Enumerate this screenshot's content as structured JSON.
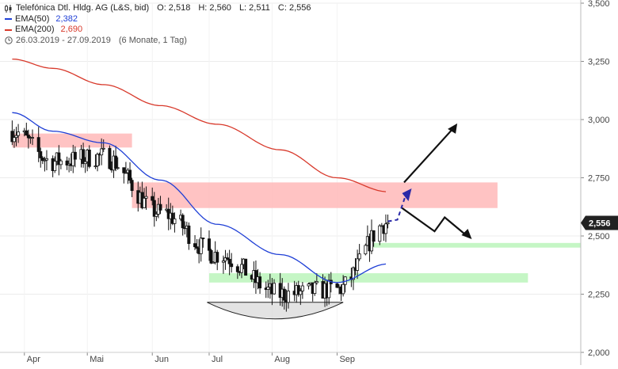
{
  "header": {
    "instrument": "Telefónica Dtl. Hldg. AG (L&S, bid)",
    "ohlc": {
      "open": "O: 2,518",
      "high": "H: 2,560",
      "low": "L: 2,511",
      "close": "C: 2,556"
    },
    "ema50": {
      "label": "EMA(50)",
      "value": "2,382"
    },
    "ema200": {
      "label": "EMA(200)",
      "value": "2,690"
    },
    "range": "26.03.2019 - 27.09.2019",
    "period": "(6 Monate, 1 Tag)",
    "icons": {
      "chart_type": "candlestick-icon",
      "range": "clock-icon"
    }
  },
  "colors": {
    "ema50": "#1f3fd6",
    "ema200": "#d8392b",
    "resistance_zone": "#ffbcbc",
    "support_zone": "#bff5bf",
    "price_box": "#222222",
    "scenario_arrow": "#111111",
    "projection": "#2a2aa8"
  },
  "price_tag": "2,556",
  "chart_data": {
    "type": "line",
    "ylim": [
      2.0,
      3.5
    ],
    "x": [
      "2019-03-26",
      "2019-04-15",
      "2019-05-10",
      "2019-06-07",
      "2019-07-05",
      "2019-08-05",
      "2019-09-02",
      "2019-09-27",
      "2019-10-25",
      "2019-11-20",
      "2019-12-20"
    ],
    "y_ticks": [
      "2,000",
      "2,250",
      "2,500",
      "2,750",
      "3,000",
      "3,250",
      "3,500"
    ],
    "x_ticks": [
      "Apr",
      "Mai",
      "Jun",
      "Jul",
      "Aug",
      "Sep"
    ],
    "series": [
      {
        "name": "Telefónica Dtl. Hldg. AG (L&S, bid)",
        "values": [
          2.95,
          2.82,
          2.84,
          2.6,
          2.42,
          2.25,
          2.27,
          2.556,
          null,
          null,
          null
        ]
      },
      {
        "name": "EMA(50)",
        "values": [
          3.03,
          2.95,
          2.9,
          2.74,
          2.55,
          2.42,
          2.3,
          2.38,
          null,
          null,
          null
        ]
      },
      {
        "name": "EMA(200)",
        "values": [
          3.26,
          3.22,
          3.15,
          3.06,
          2.98,
          2.87,
          2.75,
          2.69,
          null,
          null,
          null
        ]
      }
    ],
    "zones": [
      {
        "kind": "resistance",
        "from": "2019-03-26",
        "to": "2019-05-24",
        "ymin": 2.88,
        "ymax": 2.94
      },
      {
        "kind": "resistance",
        "from": "2019-05-24",
        "to": "2019-11-20",
        "ymin": 2.62,
        "ymax": 2.73
      },
      {
        "kind": "support",
        "from": "2019-07-01",
        "to": "2019-12-05",
        "ymin": 2.3,
        "ymax": 2.34
      },
      {
        "kind": "support",
        "from": "2019-09-18",
        "to": "2019-12-31",
        "ymin": 2.45,
        "ymax": 2.47
      }
    ],
    "annotations": [
      {
        "kind": "rounding-bottom",
        "from": "2019-06-30",
        "to": "2019-09-05",
        "low": 2.14
      },
      {
        "kind": "projection",
        "label": ""
      },
      {
        "kind": "bullish-arrow",
        "label": ""
      },
      {
        "kind": "bearish-arrow",
        "label": ""
      }
    ],
    "last_price": 2.556,
    "grid": true,
    "legend": "top-left"
  }
}
